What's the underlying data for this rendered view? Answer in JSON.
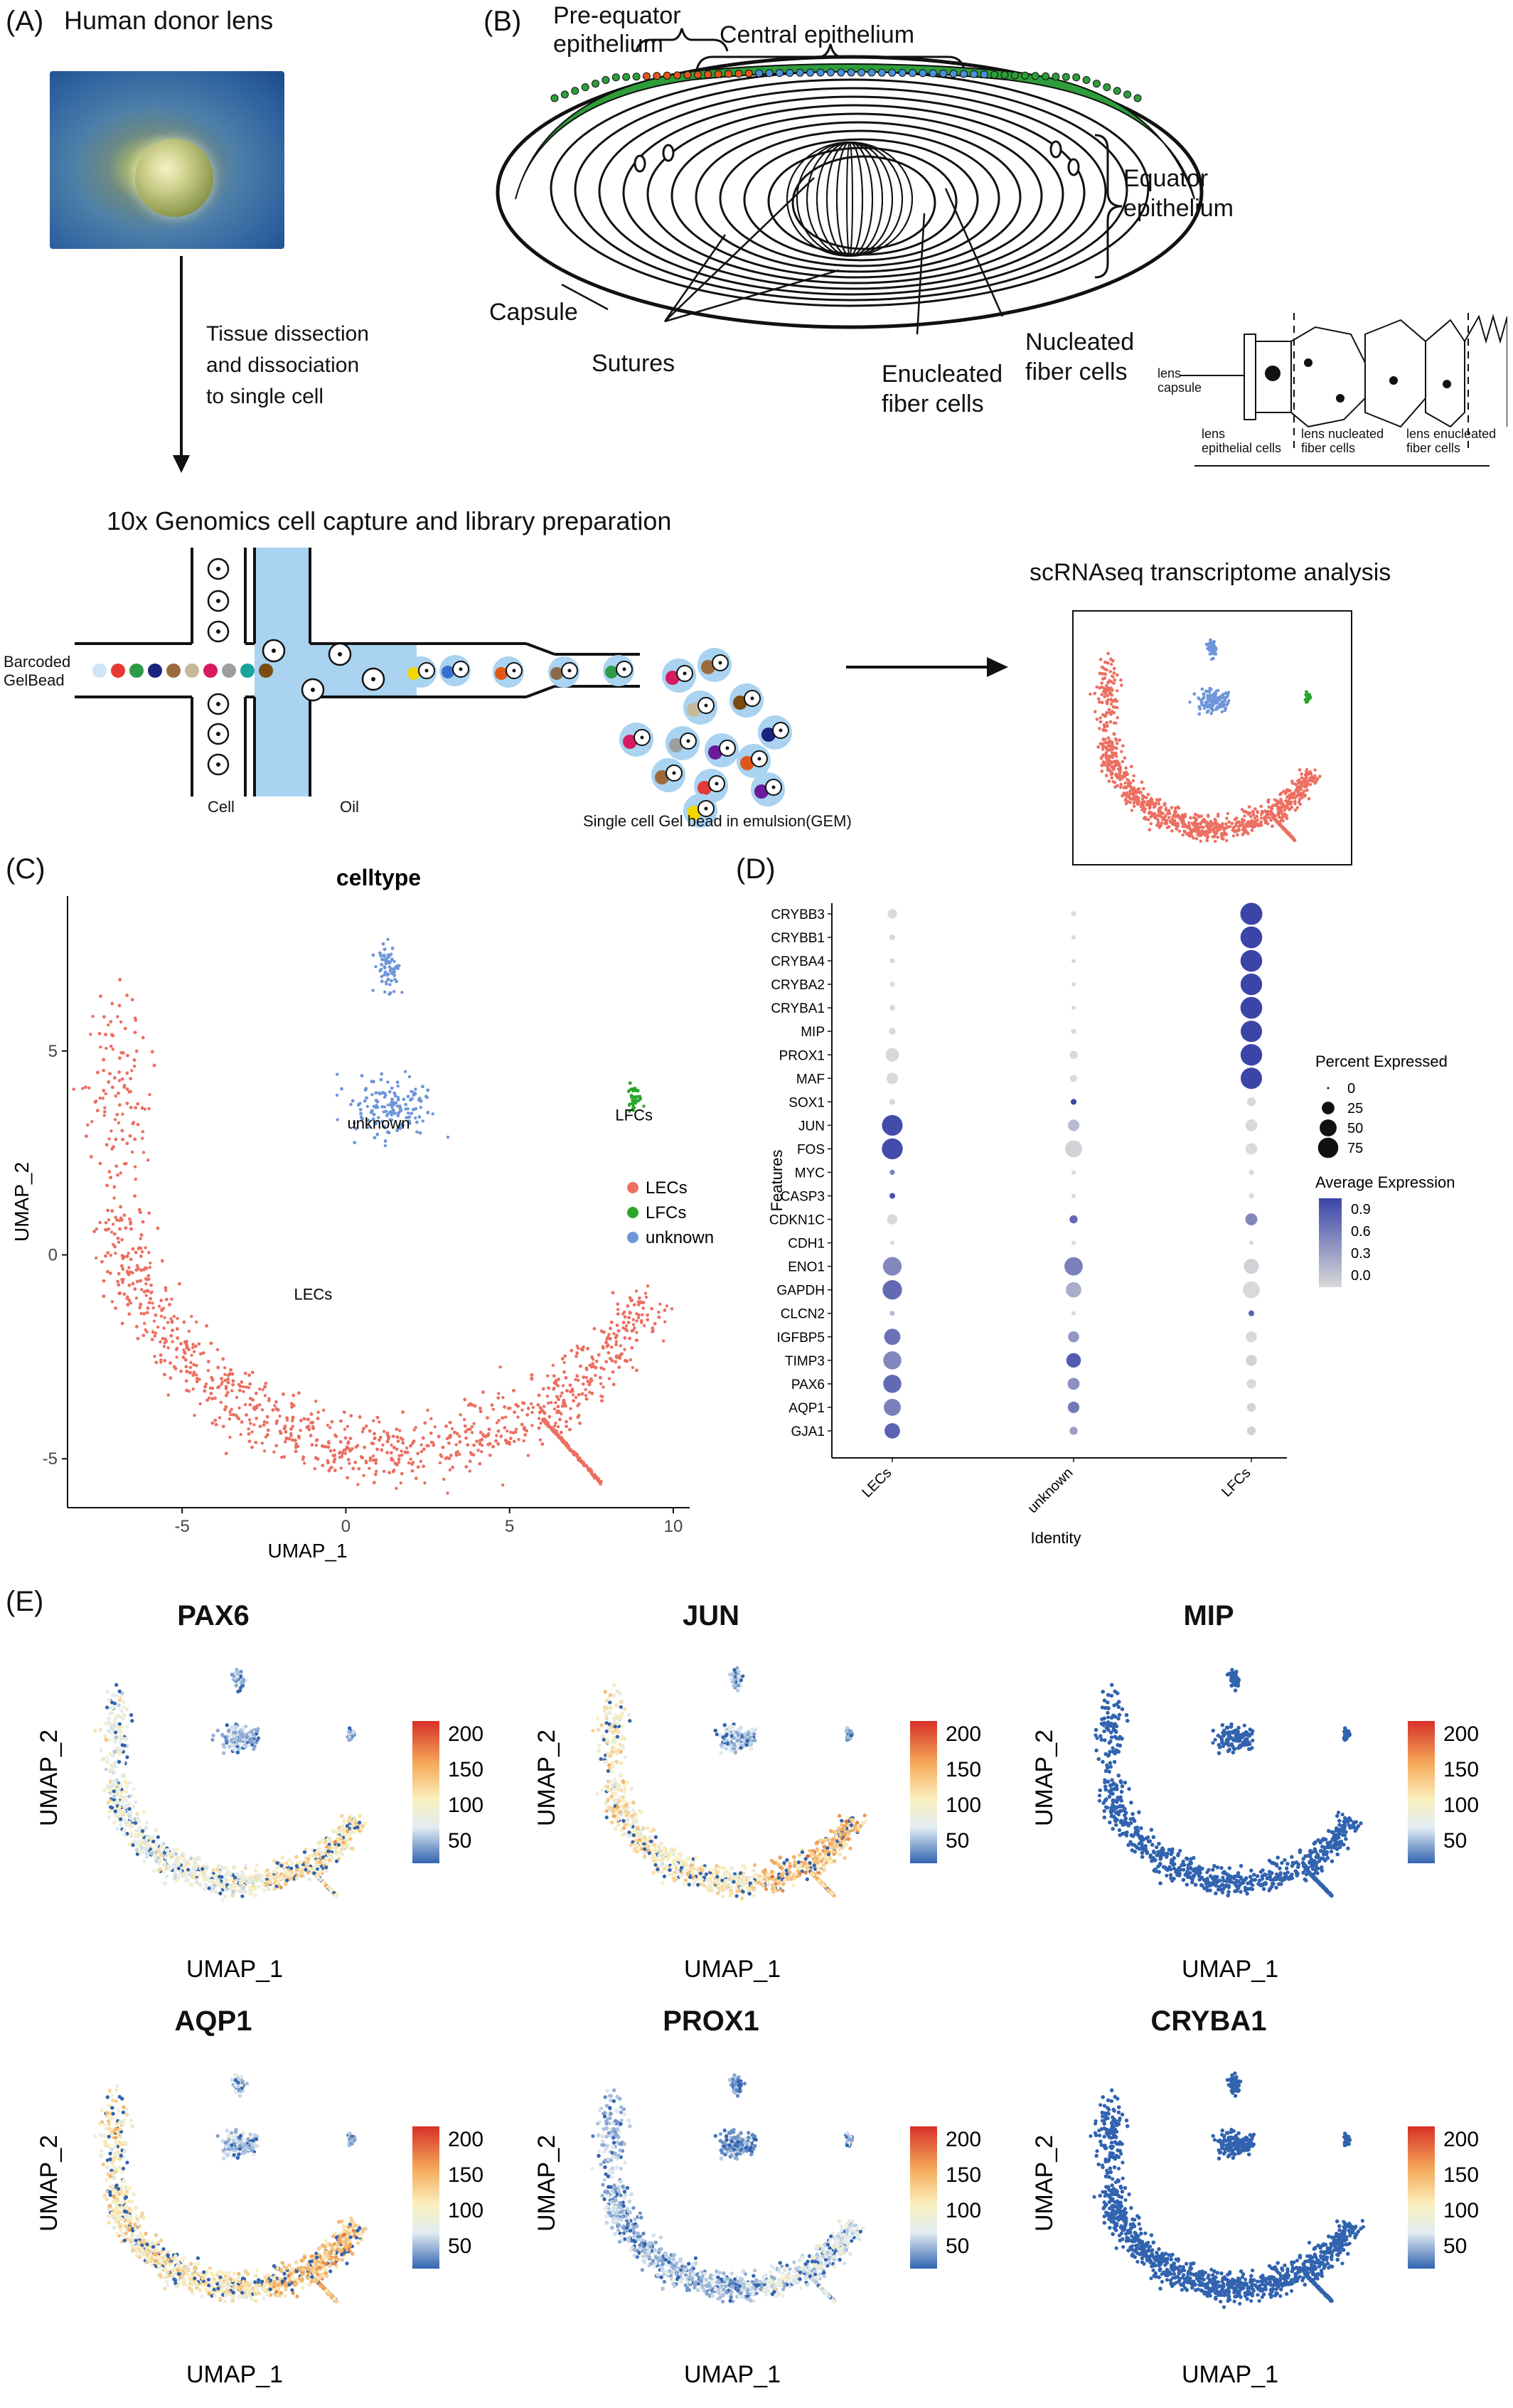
{
  "panel_a": {
    "label": "(A)",
    "photo_title": "Human donor lens",
    "arrow_text": [
      "Tissue dissection",
      "and dissociation",
      "to single cell"
    ],
    "genomics_title": "10x Genomics cell capture and library preparation",
    "barcoded": [
      "Barcoded",
      "GelBead"
    ],
    "cell": "Cell",
    "oil": "Oil",
    "gem": "Single cell Gel bead in emulsion(GEM)",
    "scrna_title": "scRNAseq transcriptome analysis"
  },
  "panel_b": {
    "label": "(B)",
    "pre_equator": [
      "Pre-equator",
      "epithelium"
    ],
    "central": "Central epithelium",
    "equator": [
      "Equator",
      "epithelium"
    ],
    "capsule": "Capsule",
    "sutures": "Sutures",
    "enucleated": [
      "Enucleated",
      "fiber cells"
    ],
    "nucleated": [
      "Nucleated",
      "fiber cells"
    ],
    "inset": {
      "capsule": [
        "lens",
        "capsule"
      ],
      "epithelial": [
        "lens",
        "epithelial cells"
      ],
      "nucleated": [
        "lens nucleated",
        "fiber cells"
      ],
      "enucleated": [
        "lens enucleated",
        "fiber cells"
      ]
    }
  },
  "panel_c": {
    "label": "(C)",
    "chart_data": {
      "type": "scatter",
      "title": "celltype",
      "xlabel": "UMAP_1",
      "ylabel": "UMAP_2",
      "xlim": [
        -8.5,
        10.5
      ],
      "ylim": [
        -6.2,
        8.8
      ],
      "xticks": [
        -5,
        0,
        5,
        10
      ],
      "yticks": [
        -5,
        0,
        5
      ],
      "legend": [
        "LECs",
        "LFCs",
        "unknown"
      ],
      "legend_colors": [
        "#ec6f61",
        "#2ba62b",
        "#6f96d8"
      ],
      "cluster_labels": [
        {
          "text": "unknown",
          "x": 1.0,
          "y": 3.1
        },
        {
          "text": "LFCs",
          "x": 8.8,
          "y": 3.3
        },
        {
          "text": "LECs",
          "x": -1.0,
          "y": -1.1
        }
      ]
    }
  },
  "panel_d": {
    "label": "(D)",
    "chart_data": {
      "type": "dot",
      "xlabel": "Identity",
      "ylabel": "Features",
      "identities": [
        "LECs",
        "unknown",
        "LFCs"
      ],
      "features": [
        "CRYBB3",
        "CRYBB1",
        "CRYBA4",
        "CRYBA2",
        "CRYBA1",
        "MIP",
        "PROX1",
        "MAF",
        "SOX1",
        "JUN",
        "FOS",
        "MYC",
        "CASP3",
        "CDKN1C",
        "CDH1",
        "ENO1",
        "GAPDH",
        "CLCN2",
        "IGFBP5",
        "TIMP3",
        "PAX6",
        "AQP1",
        "GJA1"
      ],
      "pct": [
        [
          12,
          2,
          90
        ],
        [
          3,
          1,
          88
        ],
        [
          2,
          1,
          87
        ],
        [
          2,
          1,
          86
        ],
        [
          3,
          1,
          88
        ],
        [
          5,
          2,
          84
        ],
        [
          30,
          8,
          86
        ],
        [
          20,
          6,
          84
        ],
        [
          3,
          3,
          10
        ],
        [
          78,
          20,
          22
        ],
        [
          80,
          50,
          20
        ],
        [
          2,
          1,
          2
        ],
        [
          3,
          1,
          2
        ],
        [
          15,
          8,
          22
        ],
        [
          1,
          1,
          1
        ],
        [
          62,
          60,
          38
        ],
        [
          68,
          40,
          50
        ],
        [
          2,
          1,
          3
        ],
        [
          45,
          18,
          18
        ],
        [
          58,
          35,
          18
        ],
        [
          58,
          22,
          12
        ],
        [
          50,
          20,
          10
        ],
        [
          40,
          8,
          10
        ]
      ],
      "avg": [
        [
          0.0,
          0.0,
          1.0
        ],
        [
          0.0,
          0.0,
          1.0
        ],
        [
          0.0,
          0.0,
          1.0
        ],
        [
          0.0,
          0.0,
          1.0
        ],
        [
          0.0,
          0.0,
          1.0
        ],
        [
          0.0,
          0.0,
          1.0
        ],
        [
          0.0,
          0.0,
          1.0
        ],
        [
          0.0,
          0.0,
          1.0
        ],
        [
          0.0,
          1.0,
          0.0
        ],
        [
          0.95,
          0.2,
          0.0
        ],
        [
          0.95,
          0.05,
          0.0
        ],
        [
          0.6,
          0.0,
          0.0
        ],
        [
          0.9,
          0.0,
          0.0
        ],
        [
          0.0,
          0.75,
          0.55
        ],
        [
          0.0,
          0.0,
          0.0
        ],
        [
          0.55,
          0.6,
          0.05
        ],
        [
          0.75,
          0.3,
          0.0
        ],
        [
          0.2,
          0.0,
          0.8
        ],
        [
          0.7,
          0.45,
          0.0
        ],
        [
          0.55,
          0.85,
          0.05
        ],
        [
          0.75,
          0.5,
          0.0
        ],
        [
          0.6,
          0.65,
          0.05
        ],
        [
          0.8,
          0.4,
          0.05
        ]
      ],
      "size_legend_title": "Percent Expressed",
      "size_legend": [
        0,
        25,
        50,
        75
      ],
      "color_legend_title": "Average Expression",
      "color_legend": [
        "0.9",
        "0.6",
        "0.3",
        "0.0"
      ],
      "color_low": "#d9d9d9",
      "color_high": "#3b45a8"
    }
  },
  "panel_e": {
    "label": "(E)",
    "genes": [
      "PAX6",
      "JUN",
      "MIP",
      "AQP1",
      "PROX1",
      "CRYBA1"
    ],
    "xlabel": "UMAP_1",
    "ylabel": "UMAP_2",
    "colorbar_ticks": [
      "200",
      "150",
      "100",
      "50"
    ]
  }
}
